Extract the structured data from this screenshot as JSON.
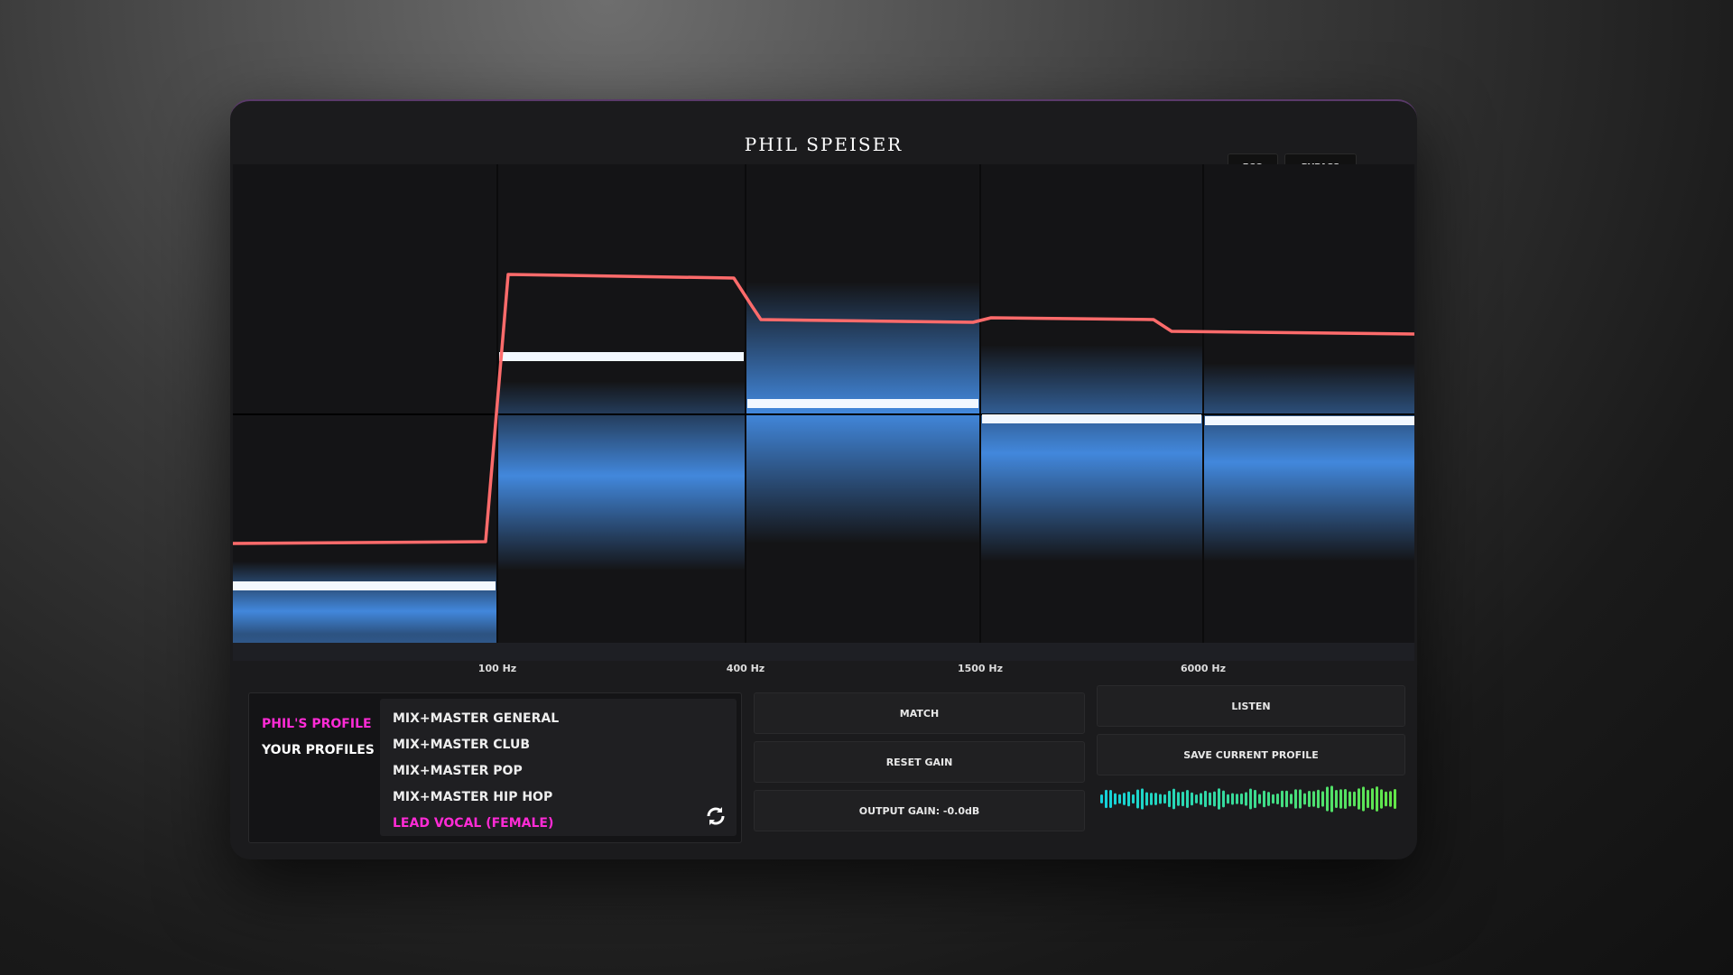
{
  "header": {
    "title": "PHIL SPEISER",
    "buttons": [
      "ECO",
      "BYPASS"
    ]
  },
  "eq": {
    "frequency_labels": [
      "100 Hz",
      "400 Hz",
      "1500 Hz",
      "6000 Hz"
    ]
  },
  "profiles": {
    "tabs": [
      "PHIL'S PROFILE",
      "YOUR PROFILES"
    ],
    "items": [
      "MIX+MASTER GENERAL",
      "MIX+MASTER CLUB",
      "MIX+MASTER POP",
      "MIX+MASTER HIP HOP",
      "LEAD VOCAL (FEMALE)"
    ]
  },
  "controls": {
    "match": "MATCH",
    "listen": "LISTEN",
    "reset_gain": "RESET GAIN",
    "save_profile": "SAVE CURRENT PROFILE",
    "output_gain": "OUTPUT GAIN: -0.0dB"
  }
}
